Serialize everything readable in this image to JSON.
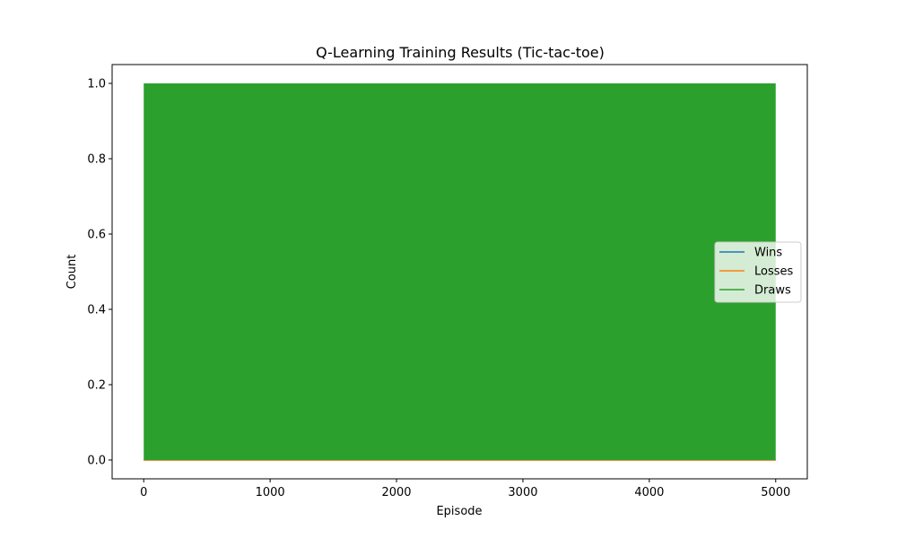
{
  "chart_data": {
    "type": "line",
    "title": "Q-Learning Training Results (Tic-tac-toe)",
    "xlabel": "Episode",
    "ylabel": "Count",
    "xlim": [
      -250,
      5250
    ],
    "ylim": [
      -0.05,
      1.05
    ],
    "x_ticks": [
      0,
      1000,
      2000,
      3000,
      4000,
      5000
    ],
    "x_tick_labels": [
      "0",
      "1000",
      "2000",
      "3000",
      "4000",
      "5000"
    ],
    "y_ticks": [
      0.0,
      0.2,
      0.4,
      0.6,
      0.8,
      1.0
    ],
    "y_tick_labels": [
      "0.0",
      "0.2",
      "0.4",
      "0.6",
      "0.8",
      "1.0"
    ],
    "grid": false,
    "legend_position": "center-right",
    "x_range": [
      0,
      5000
    ],
    "series": [
      {
        "name": "Wins",
        "color": "#1f77b4",
        "values": [
          0,
          0
        ]
      },
      {
        "name": "Losses",
        "color": "#ff7f0e",
        "values": [
          0,
          0
        ]
      },
      {
        "name": "Draws",
        "color": "#2ca02c",
        "pattern": "oscillating between 0 and 1 every episode",
        "low": 0,
        "high": 1
      }
    ]
  }
}
